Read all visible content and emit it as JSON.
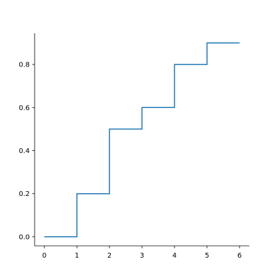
{
  "chart_data": {
    "type": "step",
    "step": "pre",
    "x": [
      0,
      1,
      2,
      3,
      4,
      5,
      6
    ],
    "values": [
      0,
      0,
      0.2,
      0.5,
      0.6,
      0.8,
      0.9
    ],
    "color": "#1f77b4",
    "xlim": [
      -0.3,
      6.3
    ],
    "ylim": [
      -0.042,
      0.945
    ],
    "xticks": [
      0,
      1,
      2,
      3,
      4,
      5,
      6
    ],
    "yticks": [
      {
        "value": 0,
        "label": "0.0"
      },
      {
        "value": 0.2,
        "label": "0.2"
      },
      {
        "value": 0.4,
        "label": "0.4"
      },
      {
        "value": 0.6,
        "label": "0.6"
      },
      {
        "value": 0.8,
        "label": "0.8"
      }
    ]
  }
}
